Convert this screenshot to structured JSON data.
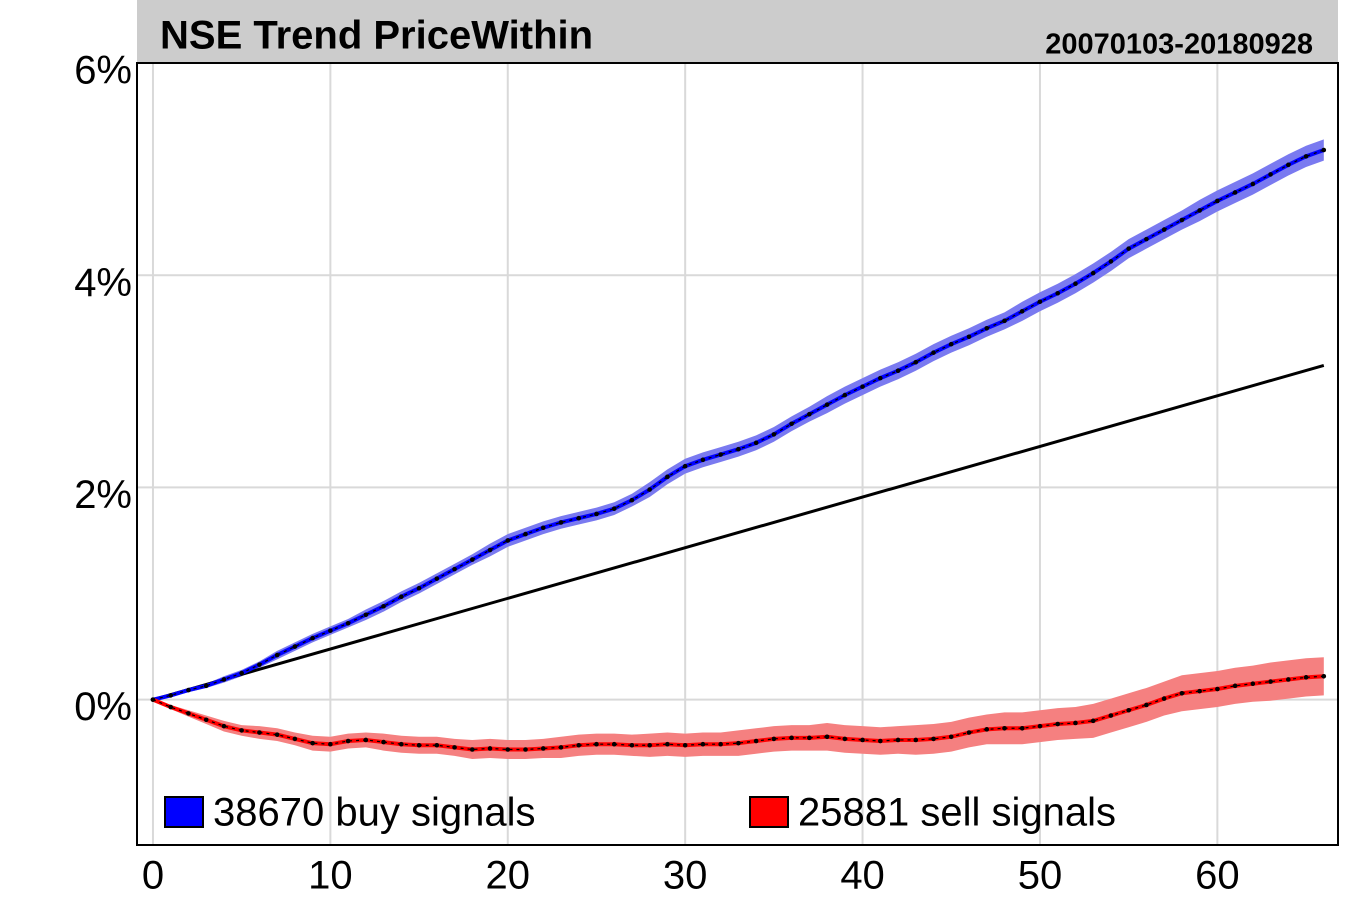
{
  "chart_data": {
    "type": "line",
    "title": "NSE Trend PriceWithin",
    "subtitle": "20070103-20180928",
    "x": [
      0,
      1,
      2,
      3,
      4,
      5,
      6,
      7,
      8,
      9,
      10,
      11,
      12,
      13,
      14,
      15,
      16,
      17,
      18,
      19,
      20,
      21,
      22,
      23,
      24,
      25,
      26,
      27,
      28,
      29,
      30,
      31,
      32,
      33,
      34,
      35,
      36,
      37,
      38,
      39,
      40,
      41,
      42,
      43,
      44,
      45,
      46,
      47,
      48,
      49,
      50,
      51,
      52,
      53,
      54,
      55,
      56,
      57,
      58,
      59,
      60,
      61,
      62,
      63,
      64,
      65,
      66
    ],
    "series": [
      {
        "name": "38670 buy signals",
        "color": "#0000ff",
        "band_color": "#7a7af0",
        "values": [
          0,
          0.04,
          0.09,
          0.13,
          0.19,
          0.25,
          0.33,
          0.42,
          0.5,
          0.58,
          0.65,
          0.72,
          0.8,
          0.88,
          0.97,
          1.05,
          1.14,
          1.23,
          1.32,
          1.41,
          1.5,
          1.56,
          1.62,
          1.67,
          1.71,
          1.75,
          1.8,
          1.88,
          1.98,
          2.1,
          2.2,
          2.26,
          2.31,
          2.36,
          2.42,
          2.5,
          2.6,
          2.69,
          2.78,
          2.87,
          2.95,
          3.03,
          3.1,
          3.18,
          3.27,
          3.35,
          3.42,
          3.5,
          3.57,
          3.66,
          3.75,
          3.83,
          3.92,
          4.02,
          4.13,
          4.25,
          4.34,
          4.43,
          4.52,
          4.61,
          4.7,
          4.78,
          4.86,
          4.95,
          5.04,
          5.12,
          5.18
        ],
        "errors": [
          0,
          0.01,
          0.02,
          0.02,
          0.03,
          0.03,
          0.03,
          0.04,
          0.04,
          0.04,
          0.04,
          0.04,
          0.05,
          0.05,
          0.05,
          0.05,
          0.05,
          0.05,
          0.05,
          0.06,
          0.06,
          0.06,
          0.06,
          0.06,
          0.06,
          0.06,
          0.06,
          0.06,
          0.07,
          0.07,
          0.07,
          0.07,
          0.07,
          0.07,
          0.07,
          0.07,
          0.07,
          0.07,
          0.08,
          0.08,
          0.08,
          0.08,
          0.08,
          0.08,
          0.08,
          0.08,
          0.08,
          0.08,
          0.08,
          0.09,
          0.09,
          0.09,
          0.09,
          0.09,
          0.09,
          0.09,
          0.09,
          0.09,
          0.09,
          0.1,
          0.1,
          0.1,
          0.1,
          0.1,
          0.1,
          0.1,
          0.1
        ]
      },
      {
        "name": "25881 sell signals",
        "color": "#ff0000",
        "band_color": "#f58080",
        "values": [
          0,
          -0.07,
          -0.13,
          -0.19,
          -0.25,
          -0.29,
          -0.31,
          -0.33,
          -0.37,
          -0.41,
          -0.42,
          -0.39,
          -0.38,
          -0.4,
          -0.42,
          -0.43,
          -0.43,
          -0.45,
          -0.47,
          -0.46,
          -0.47,
          -0.47,
          -0.46,
          -0.45,
          -0.43,
          -0.42,
          -0.42,
          -0.43,
          -0.43,
          -0.42,
          -0.43,
          -0.42,
          -0.42,
          -0.41,
          -0.39,
          -0.37,
          -0.36,
          -0.36,
          -0.35,
          -0.37,
          -0.38,
          -0.39,
          -0.38,
          -0.38,
          -0.37,
          -0.35,
          -0.31,
          -0.28,
          -0.27,
          -0.27,
          -0.25,
          -0.23,
          -0.22,
          -0.2,
          -0.15,
          -0.1,
          -0.05,
          0.01,
          0.06,
          0.08,
          0.1,
          0.13,
          0.15,
          0.17,
          0.19,
          0.21,
          0.22
        ],
        "errors": [
          0,
          0.02,
          0.03,
          0.04,
          0.05,
          0.05,
          0.06,
          0.06,
          0.06,
          0.07,
          0.07,
          0.07,
          0.07,
          0.08,
          0.08,
          0.08,
          0.08,
          0.08,
          0.09,
          0.09,
          0.09,
          0.09,
          0.09,
          0.1,
          0.1,
          0.1,
          0.1,
          0.1,
          0.11,
          0.11,
          0.11,
          0.11,
          0.11,
          0.12,
          0.12,
          0.12,
          0.12,
          0.12,
          0.13,
          0.13,
          0.13,
          0.13,
          0.13,
          0.14,
          0.14,
          0.14,
          0.14,
          0.14,
          0.15,
          0.15,
          0.15,
          0.15,
          0.15,
          0.16,
          0.16,
          0.16,
          0.16,
          0.16,
          0.17,
          0.17,
          0.17,
          0.17,
          0.17,
          0.18,
          0.18,
          0.18,
          0.18
        ]
      }
    ],
    "benchmark": {
      "x": [
        0,
        66
      ],
      "values": [
        0,
        3.15
      ],
      "color": "#000000"
    },
    "xlim": [
      -0.9,
      66.8
    ],
    "ylim": [
      -1.37,
      6.0
    ],
    "xticks": [
      0,
      10,
      20,
      30,
      40,
      50,
      60
    ],
    "yticks": [
      {
        "value": 0,
        "label": "0%"
      },
      {
        "value": 2,
        "label": "2%"
      },
      {
        "value": 4,
        "label": "4%"
      },
      {
        "value": 6,
        "label": "6%"
      }
    ],
    "grid": true,
    "legend": "bottom"
  }
}
